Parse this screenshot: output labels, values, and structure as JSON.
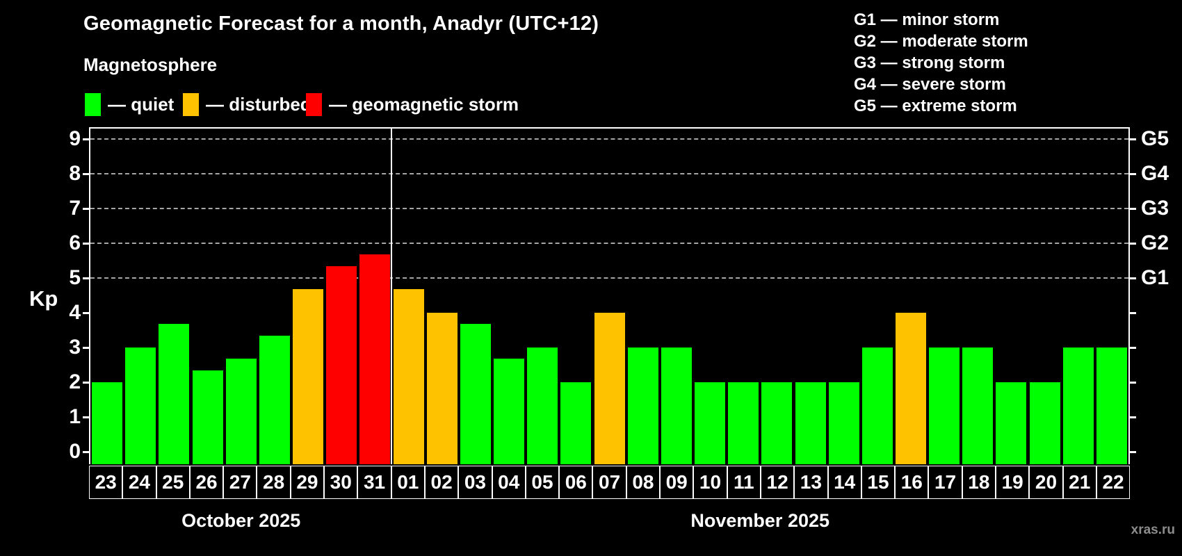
{
  "title": "Geomagnetic Forecast for a month, Anadyr (UTC+12)",
  "subtitle": "Magnetosphere",
  "legend": {
    "items": [
      {
        "id": "quiet",
        "label": "— quiet",
        "color": "#00ff00"
      },
      {
        "id": "disturbed",
        "label": "— disturbed",
        "color": "#ffc200"
      },
      {
        "id": "storm",
        "label": "— geomagnetic storm",
        "color": "#ff0000"
      }
    ]
  },
  "storm_scale_legend": [
    "G1 — minor storm",
    "G2 — moderate storm",
    "G3 — strong storm",
    "G4 — severe storm",
    "G5 — extreme storm"
  ],
  "watermark": "xras.ru",
  "chart_data": {
    "type": "bar",
    "title": "Geomagnetic Forecast for a month, Anadyr (UTC+12)",
    "xlabel": "",
    "ylabel": "Kp",
    "ylim": [
      0,
      9
    ],
    "yticks": [
      0,
      1,
      2,
      3,
      4,
      5,
      6,
      7,
      8,
      9
    ],
    "gridlines_at": [
      5,
      6,
      7,
      8,
      9
    ],
    "grid": "dashed horizontal at Kp 5-9",
    "right_axis_labels": [
      {
        "label": "G1",
        "kp": 5
      },
      {
        "label": "G2",
        "kp": 6
      },
      {
        "label": "G3",
        "kp": 7
      },
      {
        "label": "G4",
        "kp": 8
      },
      {
        "label": "G5",
        "kp": 9
      }
    ],
    "months": [
      {
        "label": "October 2025",
        "days": 9
      },
      {
        "label": "November 2025",
        "days": 22
      }
    ],
    "categories": [
      "23",
      "24",
      "25",
      "26",
      "27",
      "28",
      "29",
      "30",
      "31",
      "01",
      "02",
      "03",
      "04",
      "05",
      "06",
      "07",
      "08",
      "09",
      "10",
      "11",
      "12",
      "13",
      "14",
      "15",
      "16",
      "17",
      "18",
      "19",
      "20",
      "21",
      "22"
    ],
    "values": [
      2,
      3,
      3.67,
      2.33,
      2.67,
      3.33,
      4.67,
      5.33,
      5.67,
      4.67,
      4,
      3.67,
      2.67,
      3,
      2,
      4,
      3,
      3,
      2,
      2,
      2,
      2,
      2,
      3,
      4,
      3,
      3,
      2,
      2,
      3,
      3
    ],
    "states": [
      "quiet",
      "quiet",
      "quiet",
      "quiet",
      "quiet",
      "quiet",
      "disturbed",
      "storm",
      "storm",
      "disturbed",
      "disturbed",
      "quiet",
      "quiet",
      "quiet",
      "quiet",
      "disturbed",
      "quiet",
      "quiet",
      "quiet",
      "quiet",
      "quiet",
      "quiet",
      "quiet",
      "quiet",
      "disturbed",
      "quiet",
      "quiet",
      "quiet",
      "quiet",
      "quiet",
      "quiet"
    ],
    "state_colors": {
      "quiet": "#00ff00",
      "disturbed": "#ffc200",
      "storm": "#ff0000"
    }
  }
}
